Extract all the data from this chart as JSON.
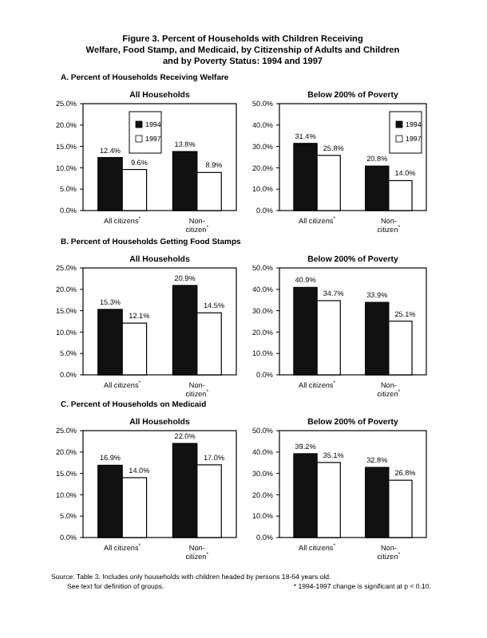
{
  "chart_data": [
    {
      "type": "bar",
      "title": "A.  Percent of Households Receiving Welfare",
      "subtitle": "All Households",
      "annotations": [
        "Figure 3.  Percent of Households with Children Receiving Welfare, Food Stamp, and Medicaid, by Citizenship of Adults and Children and by Poverty Status:  1994 and 1997"
      ],
      "categories": [
        "All citizens$^{*}$",
        "Non-citizen$^{*}$"
      ],
      "ylim": [
        0,
        25
      ],
      "yticks": [
        {
          "value": 0,
          "label": "0.0%"
        },
        {
          "value": 5,
          "label": "5.0%"
        },
        {
          "value": 10,
          "label": "10.0%"
        },
        {
          "value": 15,
          "label": "15.0%"
        },
        {
          "value": 20,
          "label": "20.0%"
        },
        {
          "value": 25,
          "label": "25.0%"
        }
      ],
      "legend": "top",
      "grid": false,
      "series": [
        {
          "name": "1994",
          "color": "#111111",
          "values": [
            12.4,
            13.8
          ],
          "value_labels": [
            "12.4%",
            "13.8%"
          ]
        },
        {
          "name": "1997",
          "color": "#ffffff",
          "values": [
            9.6,
            8.9
          ],
          "value_labels": [
            "9.6%",
            "8.9%"
          ]
        }
      ]
    },
    {
      "type": "bar",
      "subtitle": "Below 200% of Poverty",
      "categories": [
        "All citizens$^{*}$",
        "Non-citizen$^{*}$"
      ],
      "ylim": [
        0,
        50
      ],
      "yticks": [
        {
          "value": 0,
          "label": "0.0%"
        },
        {
          "value": 10,
          "label": "10.0%"
        },
        {
          "value": 20,
          "label": "20.0%"
        },
        {
          "value": 30,
          "label": "30.0%"
        },
        {
          "value": 40,
          "label": "40.0%"
        },
        {
          "value": 50,
          "label": "50.0%"
        }
      ],
      "legend": "top right",
      "grid": false,
      "series": [
        {
          "name": "1994",
          "color": "#111111",
          "values": [
            31.4,
            20.8
          ],
          "value_labels": [
            "31.4%",
            "20.8%"
          ]
        },
        {
          "name": "1997",
          "color": "#ffffff",
          "values": [
            25.8,
            14.0
          ],
          "value_labels": [
            "25.8%",
            "14.0%"
          ]
        }
      ]
    },
    {
      "type": "bar",
      "title": "B.  Percent of Households Getting Food Stamps",
      "subtitle": "All Households",
      "categories": [
        "All citizens$^{*}$",
        "Non-citizen$^{*}$"
      ],
      "ylim": [
        0,
        25
      ],
      "yticks": [
        {
          "value": 0,
          "label": "0.0%"
        },
        {
          "value": 5,
          "label": "5.0%"
        },
        {
          "value": 10,
          "label": "10.0%"
        },
        {
          "value": 15,
          "label": "15.0%"
        },
        {
          "value": 20,
          "label": "20.0%"
        },
        {
          "value": 25,
          "label": "25.0%"
        }
      ],
      "grid": false,
      "series": [
        {
          "color": "#111111",
          "values": [
            15.3,
            20.9
          ],
          "value_labels": [
            "15.3%",
            "20.9%"
          ]
        },
        {
          "color": "#ffffff",
          "values": [
            12.1,
            14.5
          ],
          "value_labels": [
            "12.1%",
            "14.5%"
          ]
        }
      ]
    },
    {
      "type": "bar",
      "subtitle": "Below 200% of Poverty",
      "categories": [
        "All citizens$^{*}$",
        "Non-citizen$^{*}$"
      ],
      "ylim": [
        0,
        50
      ],
      "yticks": [
        {
          "value": 0,
          "label": "0.0%"
        },
        {
          "value": 10,
          "label": "10.0%"
        },
        {
          "value": 20,
          "label": "20.0%"
        },
        {
          "value": 30,
          "label": "30.0%"
        },
        {
          "value": 40,
          "label": "40.0%"
        },
        {
          "value": 50,
          "label": "50.0%"
        }
      ],
      "grid": false,
      "series": [
        {
          "color": "#111111",
          "values": [
            40.9,
            33.9
          ],
          "value_labels": [
            "40.9%",
            "33.9%"
          ]
        },
        {
          "color": "#ffffff",
          "values": [
            34.7,
            25.1
          ],
          "value_labels": [
            "34.7%",
            "25.1%"
          ]
        }
      ]
    },
    {
      "type": "bar",
      "title": "C.  Percent of Households on Medicaid",
      "subtitle": "All Households",
      "annotations": [
        "Source:  Table 3.  Includes only households with children headed by persons 18-64 years old.",
        "See text for definition of groups."
      ],
      "categories": [
        "All citizens$^{*}$",
        "Non-citizen$^{*}$"
      ],
      "ylim": [
        0,
        25
      ],
      "yticks": [
        {
          "value": 0,
          "label": "0.0%"
        },
        {
          "value": 5,
          "label": "5.0%"
        },
        {
          "value": 10,
          "label": "10.0%"
        },
        {
          "value": 15,
          "label": "15.0%"
        },
        {
          "value": 20,
          "label": "20.0%"
        },
        {
          "value": 25,
          "label": "25.0%"
        }
      ],
      "grid": false,
      "series": [
        {
          "color": "#111111",
          "values": [
            16.9,
            22.0
          ],
          "value_labels": [
            "16.9%",
            "22.0%"
          ]
        },
        {
          "color": "#ffffff",
          "values": [
            14.0,
            17.0
          ],
          "value_labels": [
            "14.0%",
            "17.0%"
          ]
        }
      ]
    },
    {
      "type": "bar",
      "subtitle": "Below 200% of Poverty",
      "annotations": [
        "* 1994-1997 change is significant at p < 0.10."
      ],
      "categories": [
        "All citizens$^{*}$",
        "Non-citizen$^{*}$"
      ],
      "ylim": [
        0,
        50
      ],
      "yticks": [
        {
          "value": 0,
          "label": "0.0%"
        },
        {
          "value": 10,
          "label": "10.0%"
        },
        {
          "value": 20,
          "label": "20.0%"
        },
        {
          "value": 30,
          "label": "30.0%"
        },
        {
          "value": 40,
          "label": "40.0%"
        },
        {
          "value": 50,
          "label": "50.0%"
        }
      ],
      "grid": false,
      "series": [
        {
          "color": "#111111",
          "values": [
            39.2,
            32.8
          ],
          "value_labels": [
            "39.2%",
            "32.8%"
          ]
        },
        {
          "color": "#ffffff",
          "values": [
            35.1,
            26.8
          ],
          "value_labels": [
            "35.1%",
            "26.8%"
          ]
        }
      ]
    }
  ]
}
